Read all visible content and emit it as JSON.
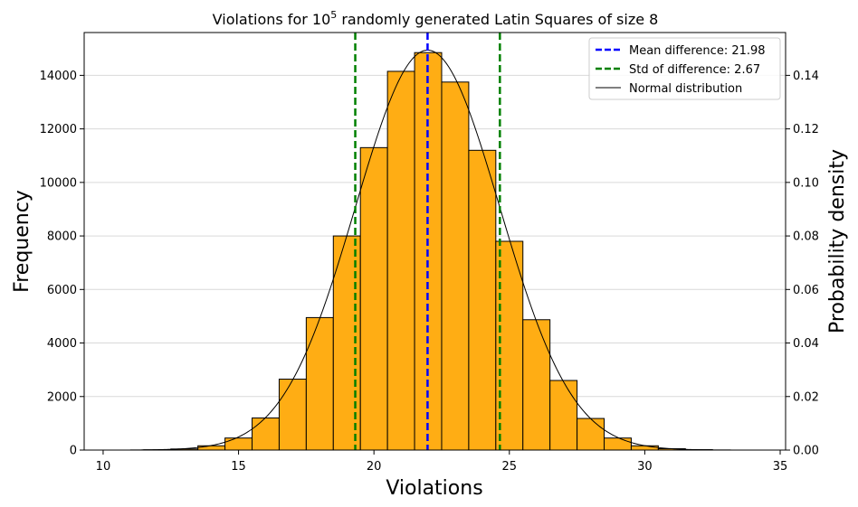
{
  "chart_data": {
    "type": "bar",
    "title": {
      "prefix": "Violations for 10",
      "superscript": "5",
      "suffix": " randomly generated Latin Squares of size 8"
    },
    "xlabel": "Violations",
    "ylabel_left": "Frequency",
    "ylabel_right": "Probability density",
    "xlim": [
      9.3,
      35.2
    ],
    "ylim_left": [
      0,
      15600
    ],
    "ylim_right": [
      0,
      0.156
    ],
    "x_ticks": [
      10,
      15,
      20,
      25,
      30,
      35
    ],
    "y_left_ticks": [
      0,
      2000,
      4000,
      6000,
      8000,
      10000,
      12000,
      14000
    ],
    "y_right_ticks": [
      0.0,
      0.02,
      0.04,
      0.06,
      0.08,
      0.1,
      0.12,
      0.14
    ],
    "y_right_tick_labels": [
      "0.00",
      "0.02",
      "0.04",
      "0.06",
      "0.08",
      "0.10",
      "0.12",
      "0.14"
    ],
    "grid": "horizontal",
    "bins": [
      {
        "x0": 11.5,
        "x1": 12.5,
        "count": 10
      },
      {
        "x0": 12.5,
        "x1": 13.5,
        "count": 40
      },
      {
        "x0": 13.5,
        "x1": 14.5,
        "count": 160
      },
      {
        "x0": 14.5,
        "x1": 15.5,
        "count": 450
      },
      {
        "x0": 15.5,
        "x1": 16.5,
        "count": 1200
      },
      {
        "x0": 16.5,
        "x1": 17.5,
        "count": 2650
      },
      {
        "x0": 17.5,
        "x1": 18.5,
        "count": 4950
      },
      {
        "x0": 18.5,
        "x1": 19.5,
        "count": 8000
      },
      {
        "x0": 19.5,
        "x1": 20.5,
        "count": 11300
      },
      {
        "x0": 20.5,
        "x1": 21.5,
        "count": 14150
      },
      {
        "x0": 21.5,
        "x1": 22.5,
        "count": 14850
      },
      {
        "x0": 22.5,
        "x1": 23.5,
        "count": 13750
      },
      {
        "x0": 23.5,
        "x1": 24.5,
        "count": 11200
      },
      {
        "x0": 24.5,
        "x1": 25.5,
        "count": 7800
      },
      {
        "x0": 25.5,
        "x1": 26.5,
        "count": 4870
      },
      {
        "x0": 26.5,
        "x1": 27.5,
        "count": 2600
      },
      {
        "x0": 27.5,
        "x1": 28.5,
        "count": 1180
      },
      {
        "x0": 28.5,
        "x1": 29.5,
        "count": 450
      },
      {
        "x0": 29.5,
        "x1": 30.5,
        "count": 160
      },
      {
        "x0": 30.5,
        "x1": 31.5,
        "count": 50
      },
      {
        "x0": 31.5,
        "x1": 32.5,
        "count": 15
      }
    ],
    "bar_color": "#FFAD14",
    "bar_edge_color": "#000000",
    "mean": 21.98,
    "std": 2.67,
    "normal_curve": {
      "x_min": 11,
      "x_max": 34,
      "color": "#000000"
    },
    "vlines": [
      {
        "x": 21.98,
        "color": "#0000FF",
        "style": "dashed",
        "series": "mean"
      },
      {
        "x": 19.31,
        "color": "#008000",
        "style": "dashed",
        "series": "std"
      },
      {
        "x": 24.65,
        "color": "#008000",
        "style": "dashed",
        "series": "std"
      }
    ],
    "legend": {
      "position": "top-right",
      "entries": [
        {
          "label": "Mean difference: 21.98",
          "color": "#0000FF",
          "style": "dashed"
        },
        {
          "label": "Std of difference: 2.67",
          "color": "#008000",
          "style": "dashed"
        },
        {
          "label": "Normal distribution",
          "color": "#000000",
          "style": "solid"
        }
      ]
    }
  }
}
